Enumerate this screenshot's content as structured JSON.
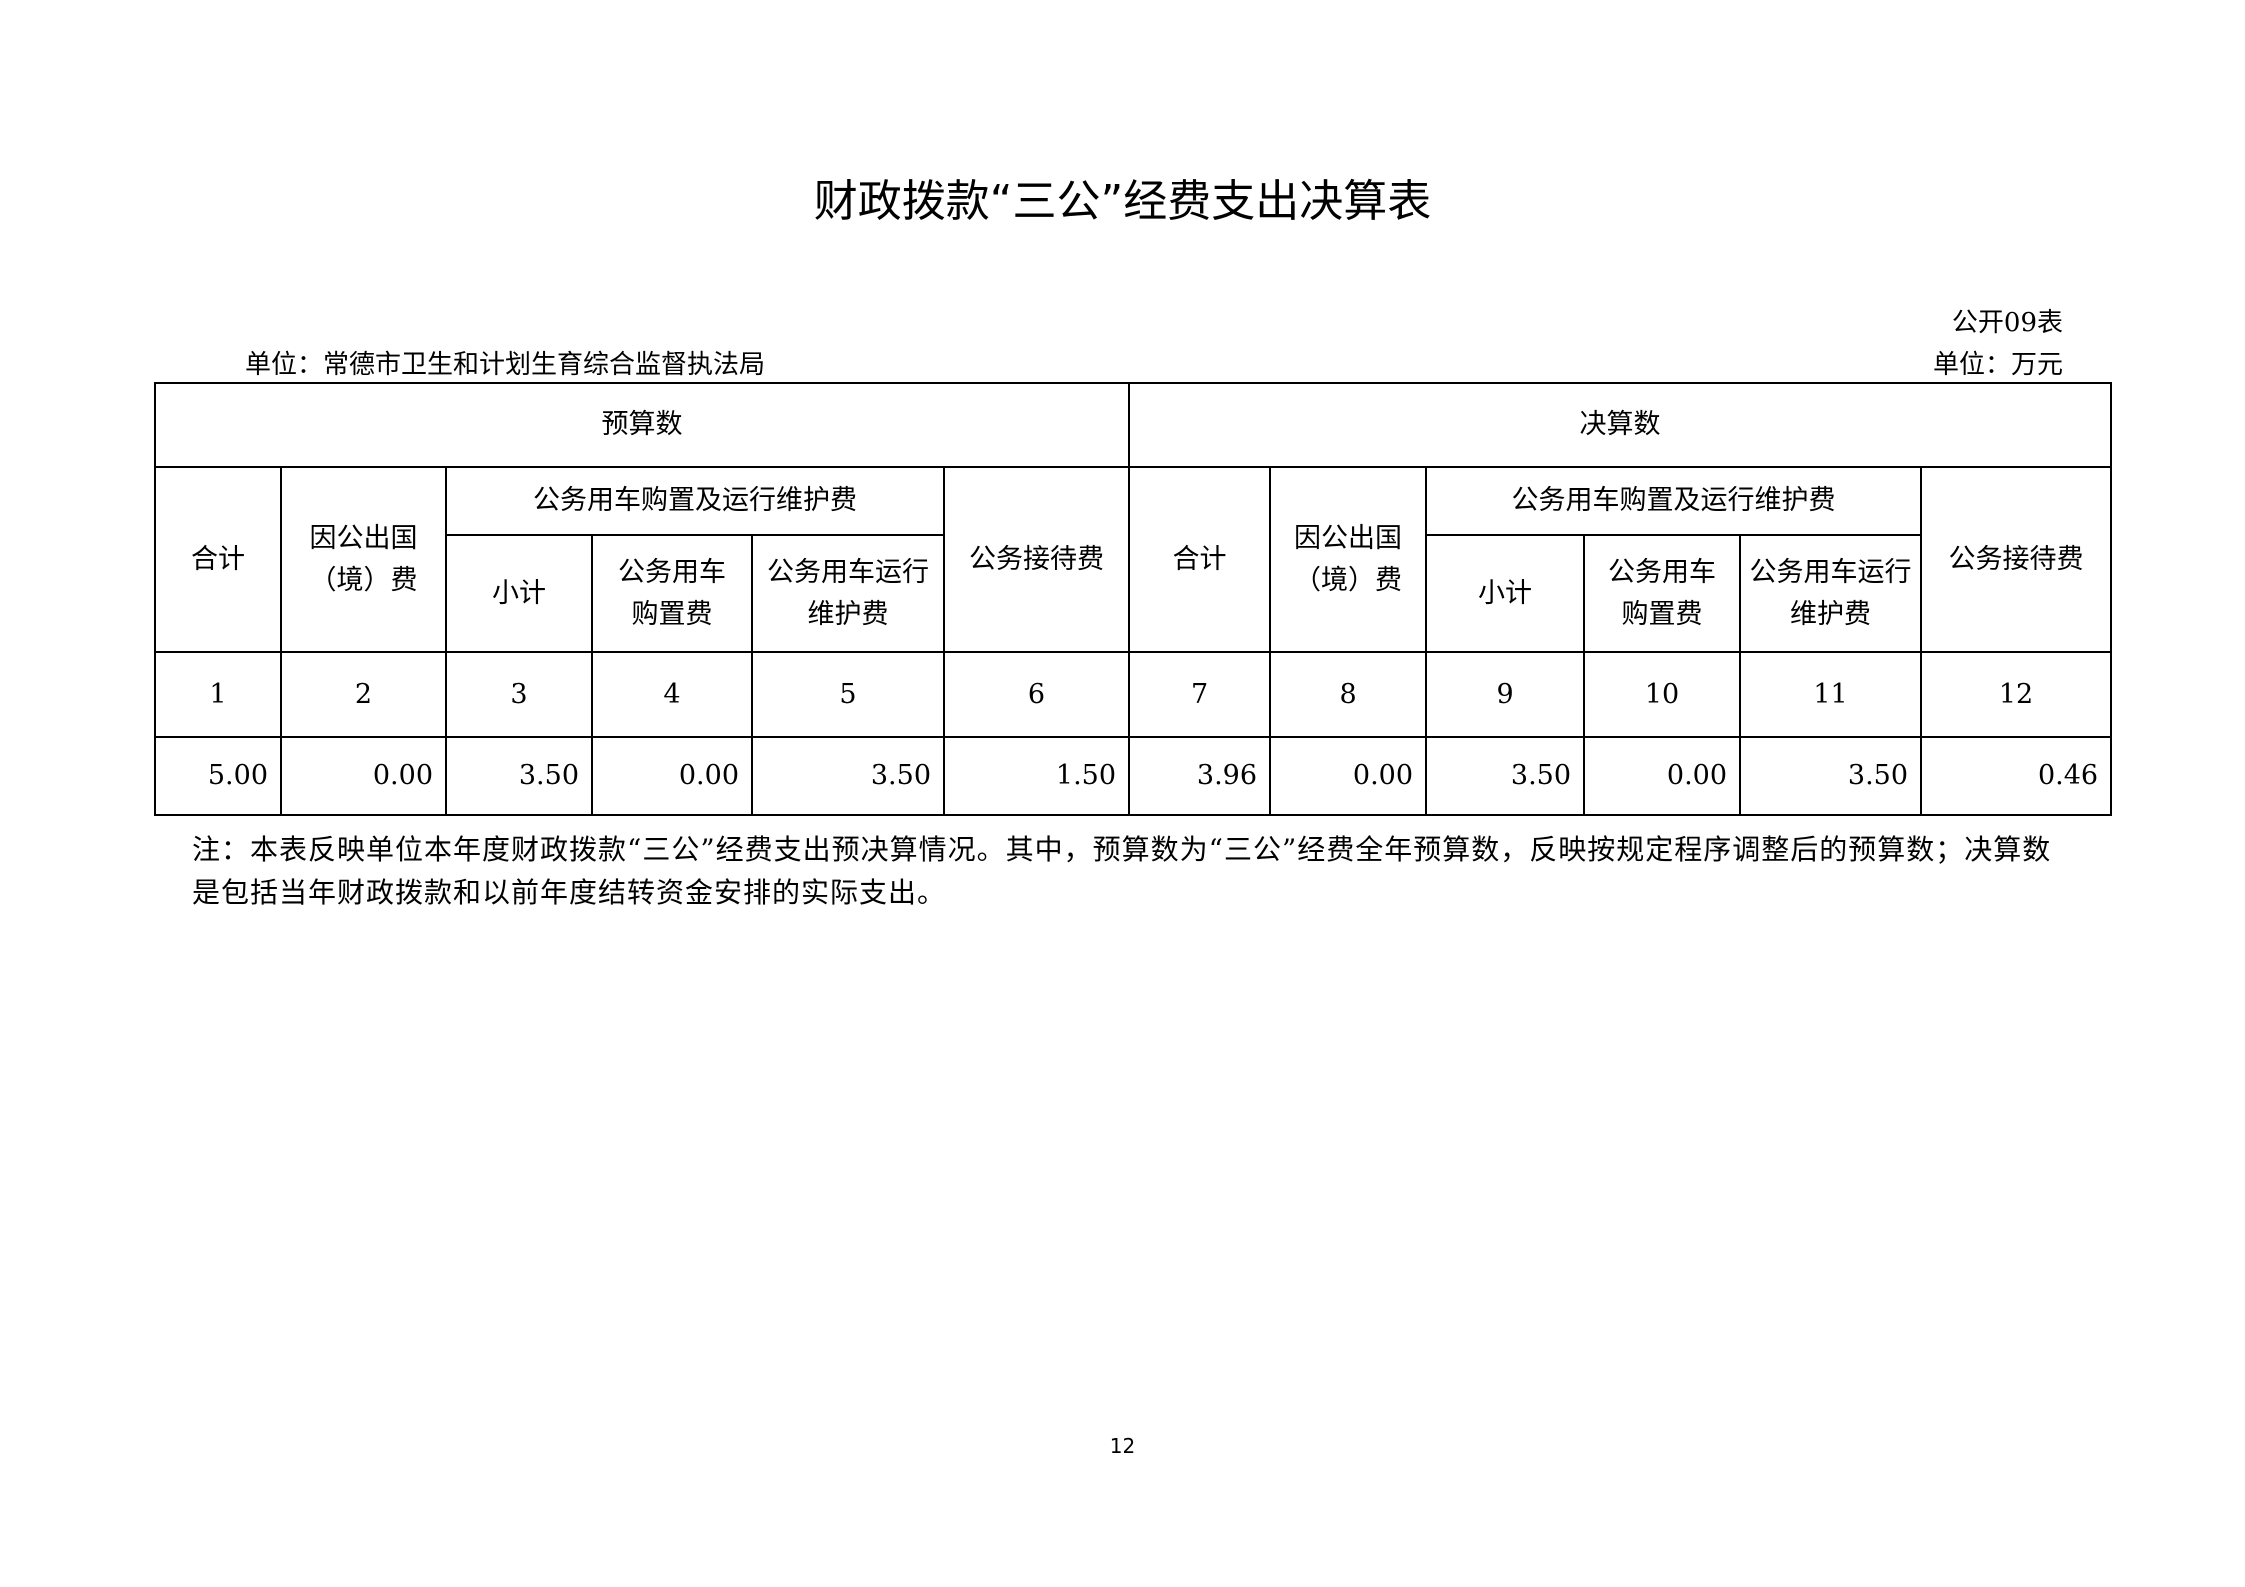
{
  "title": "财政拨款“三公”经费支出决算表",
  "form_no": "公开09表",
  "unit_org": "单位：常德市卫生和计划生育综合监督执法局",
  "unit_currency": "单位：万元",
  "table": {
    "group_budget": "预算数",
    "group_final": "决算数",
    "col_total": "合计",
    "col_abroad": "因公出国（境）费",
    "col_vehicle": "公务用车购置及运行维护费",
    "col_subtotal": "小计",
    "col_purchase": "公务用车购置费",
    "col_maintain": "公务用车运行维护费",
    "col_reception": "公务接待费",
    "col_numbers": [
      "1",
      "2",
      "3",
      "4",
      "5",
      "6",
      "7",
      "8",
      "9",
      "10",
      "11",
      "12"
    ],
    "values": [
      "5.00",
      "0.00",
      "3.50",
      "0.00",
      "3.50",
      "1.50",
      "3.96",
      "0.00",
      "3.50",
      "0.00",
      "3.50",
      "0.46"
    ]
  },
  "note": "注：本表反映单位本年度财政拨款“三公”经费支出预决算情况。其中，预算数为“三公”经费全年预算数，反映按规定程序调整后的预算数；决算数是包括当年财政拨款和以前年度结转资金安排的实际支出。",
  "page_number": "12"
}
